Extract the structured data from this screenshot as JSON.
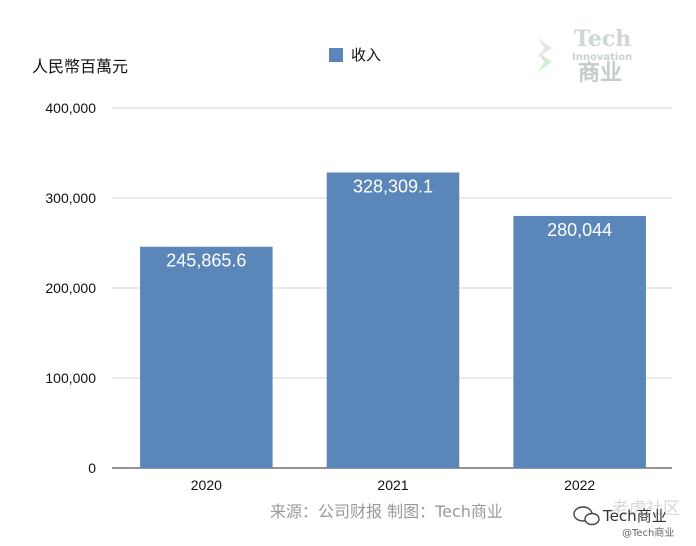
{
  "chart_data": {
    "type": "bar",
    "categories": [
      "2020",
      "2021",
      "2022"
    ],
    "series": [
      {
        "name": "收入",
        "values": [
          245865.6,
          328309.1,
          280044
        ],
        "labels": [
          "245,865.6",
          "328,309.1",
          "280,044"
        ]
      }
    ],
    "ylabel": "人民幣百萬元",
    "ylim": [
      0,
      400000
    ],
    "yticks": [
      0,
      100000,
      200000,
      300000,
      400000
    ],
    "ytick_labels": [
      "0",
      "100,000",
      "200,000",
      "300,000",
      "400,000"
    ],
    "grid": true,
    "legend": "top-center",
    "bar_color": "#5b86b9",
    "source": "来源：公司财报 制图：Tech商业"
  },
  "logo": {
    "line1": "Tech",
    "line2": "Innovation",
    "line3": "商业"
  },
  "watermark": {
    "main": "Tech商业",
    "ghost": "老虎社区",
    "handle": "@Tech商业"
  }
}
